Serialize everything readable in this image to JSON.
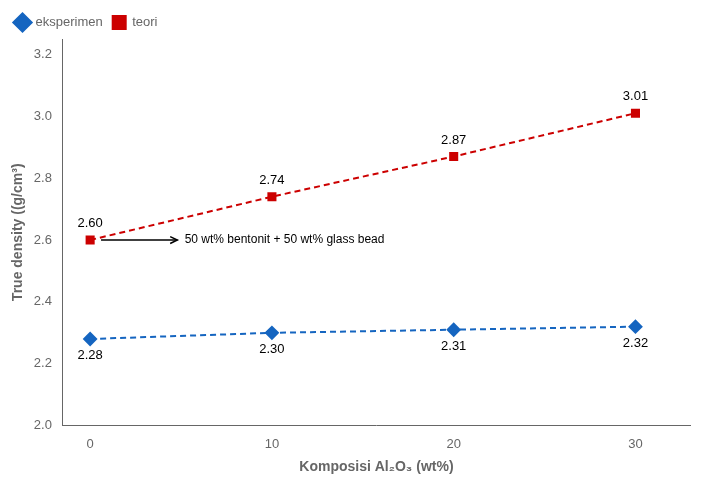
{
  "chart_data": {
    "type": "line",
    "x": [
      0,
      10,
      20,
      30
    ],
    "series": [
      {
        "name": "eksperimen",
        "color": "#1565C0",
        "marker": "diamond",
        "line_style": "dashed",
        "values": [
          2.28,
          2.3,
          2.31,
          2.32
        ],
        "value_labels": [
          "2.28",
          "2.30",
          "2.31",
          "2.32"
        ]
      },
      {
        "name": "teori",
        "color": "#CC0000",
        "marker": "square",
        "line_style": "dashed",
        "values": [
          2.6,
          2.74,
          2.87,
          3.01
        ],
        "value_labels": [
          "2.60",
          "2.74",
          "2.87",
          "3.01"
        ]
      }
    ],
    "xlabel": "Komposisi Al₂O₃ (wt%)",
    "ylabel": "True density ((g/cm³)",
    "xlim": [
      -1.5,
      33
    ],
    "ylim": [
      2.0,
      3.25
    ],
    "xticks": [
      0,
      10,
      20,
      30
    ],
    "yticks": [
      {
        "value": 2.0,
        "label": "2.0"
      },
      2.2,
      2.4,
      2.6,
      2.8,
      {
        "value": 3.0,
        "label": "3.0"
      },
      3.2
    ],
    "annotations": [
      {
        "text": "50 wt% bentonit + 50 wt% glass bead",
        "x": 5.2,
        "y": 2.6,
        "arrow_from": [
          0.6,
          2.6
        ],
        "arrow_to": [
          4.8,
          2.6
        ]
      }
    ],
    "data_labels": true,
    "legend": "upper left",
    "grid": false
  }
}
